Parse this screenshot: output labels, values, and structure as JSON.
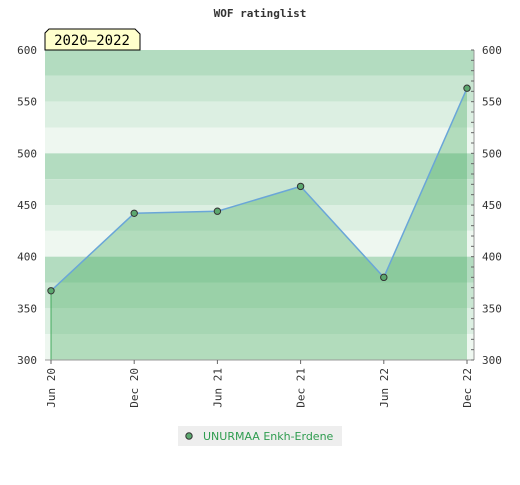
{
  "chart_data": {
    "type": "area",
    "title": "WOF ratinglist",
    "period_badge": "2020–2022",
    "categories": [
      "Jun 20",
      "Dec 20",
      "Jun 21",
      "Dec 21",
      "Jun 22",
      "Dec 22"
    ],
    "series": [
      {
        "name": "UNURMAA Enkh-Erdene",
        "values": [
          367,
          442,
          444,
          468,
          380,
          563
        ],
        "color": "#2e9c4f"
      }
    ],
    "y_ticks": [
      300,
      350,
      400,
      450,
      500,
      550,
      600
    ],
    "ylim": [
      300,
      600
    ],
    "grid": true,
    "legend_position": "bottom-center",
    "colors": {
      "band_dark": "#b3dcc0",
      "band_mid": "#c9e6d2",
      "band_light": "#dcefe2",
      "band_lightest": "#eef7f0",
      "area_fill": "#43a95c",
      "line": "#6aa6d8",
      "marker": "#5ca86f",
      "badge_fill": "#ffffcc"
    }
  }
}
